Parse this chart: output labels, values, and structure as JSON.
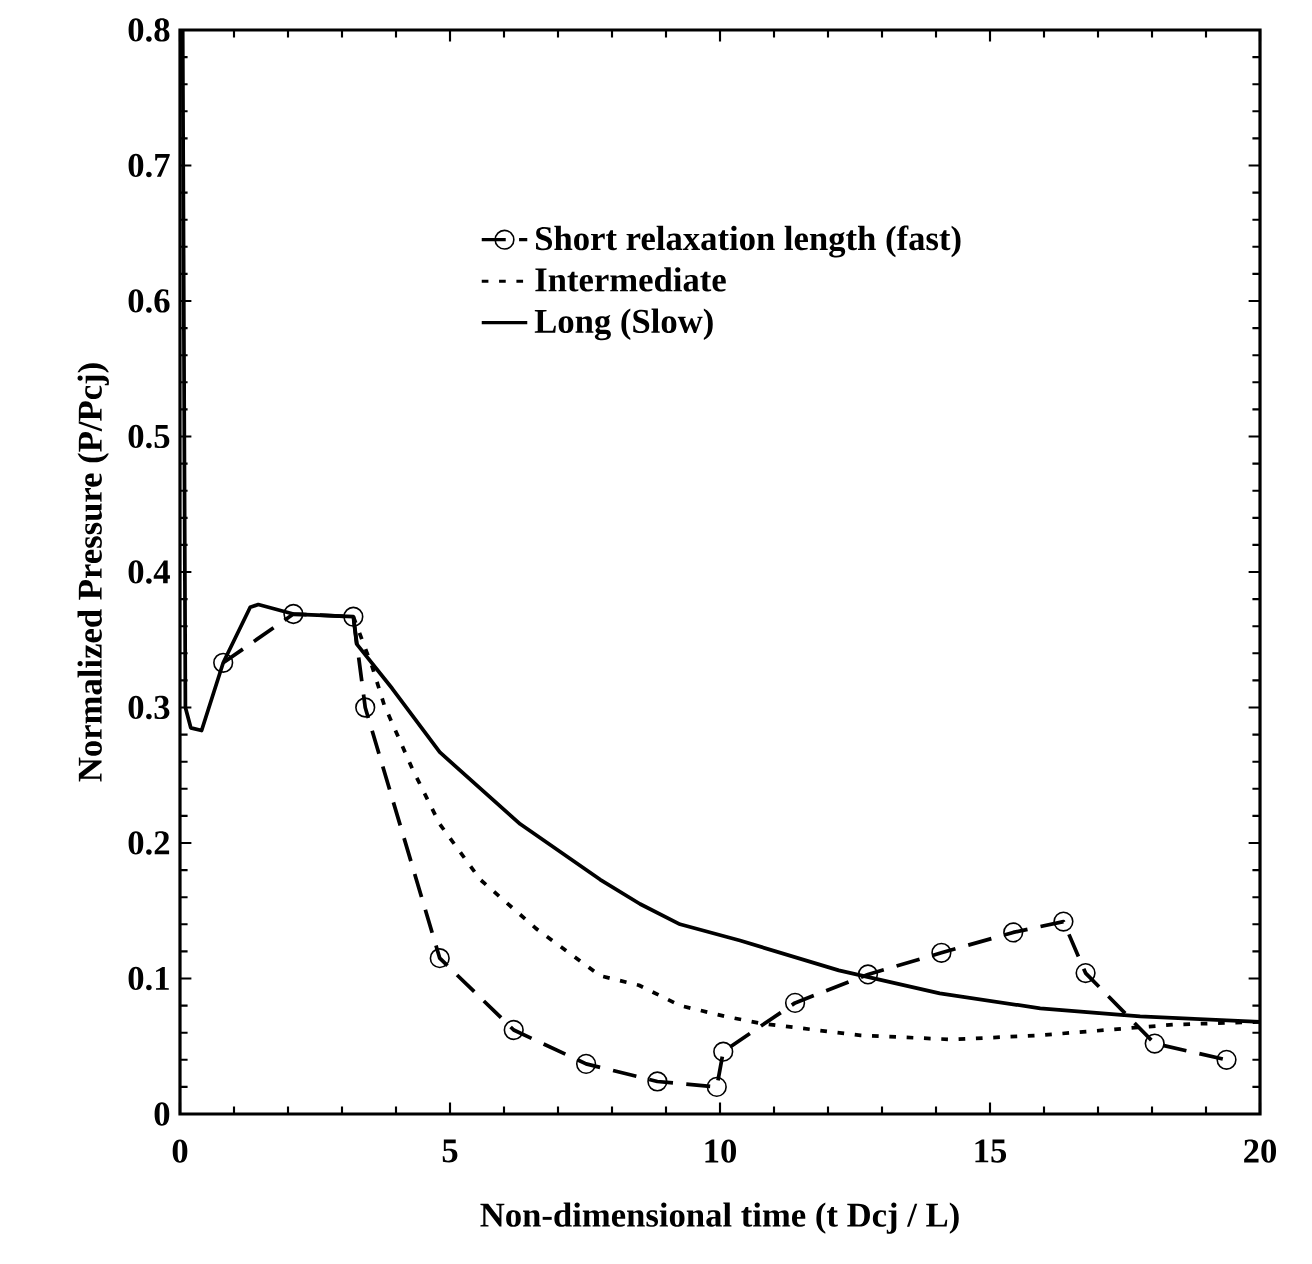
{
  "chart_data": {
    "type": "line",
    "xlabel": "Non-dimensional time (t Dcj / L)",
    "ylabel": "Normalized Pressure (P/Pcj)",
    "xlim": [
      0,
      20
    ],
    "ylim": [
      0,
      0.8
    ],
    "xticks": [
      0,
      5,
      10,
      15,
      20
    ],
    "yticks": [
      0,
      0.1,
      0.2,
      0.3,
      0.4,
      0.5,
      0.6,
      0.7,
      0.8
    ],
    "grid": false,
    "legend": "top left",
    "series": [
      {
        "name": "Short relaxation length (fast)",
        "color": "#000000",
        "line_style": "dashed",
        "marker": "circle",
        "x": [
          0.8,
          2.1,
          3.21,
          3.43,
          4.81,
          6.18,
          7.52,
          8.84,
          9.94,
          10.06,
          11.39,
          12.74,
          14.1,
          15.43,
          16.36,
          16.77,
          18.05,
          19.38
        ],
        "values": [
          0.333,
          0.369,
          0.367,
          0.3,
          0.115,
          0.062,
          0.037,
          0.024,
          0.02,
          0.046,
          0.082,
          0.103,
          0.119,
          0.134,
          0.142,
          0.104,
          0.052,
          0.04
        ]
      },
      {
        "name": "Intermediate",
        "color": "#000000",
        "line_style": "dotted",
        "marker": "none",
        "x": [
          3.21,
          3.56,
          3.78,
          4.3,
          4.81,
          5.56,
          6.59,
          7.78,
          8.5,
          9.26,
          10.1,
          10.74,
          12.6,
          14.3,
          15.9,
          17.16,
          18.4,
          20
        ],
        "values": [
          0.367,
          0.33,
          0.302,
          0.255,
          0.214,
          0.173,
          0.137,
          0.102,
          0.095,
          0.08,
          0.072,
          0.067,
          0.058,
          0.055,
          0.058,
          0.062,
          0.066,
          0.068
        ]
      },
      {
        "name": "Long (Slow)",
        "color": "#000000",
        "line_style": "solid",
        "marker": "none",
        "x": [
          0.05,
          0.1,
          0.2,
          0.4,
          0.8,
          1.3,
          1.45,
          2.1,
          3.21,
          3.27,
          3.93,
          4.81,
          6.3,
          7.78,
          8.52,
          9.26,
          10.37,
          12.2,
          14.07,
          15.93,
          17.78,
          20
        ],
        "values": [
          0.8,
          0.3,
          0.285,
          0.283,
          0.333,
          0.374,
          0.376,
          0.369,
          0.367,
          0.347,
          0.314,
          0.267,
          0.214,
          0.173,
          0.155,
          0.14,
          0.128,
          0.106,
          0.089,
          0.078,
          0.072,
          0.068
        ]
      }
    ]
  }
}
